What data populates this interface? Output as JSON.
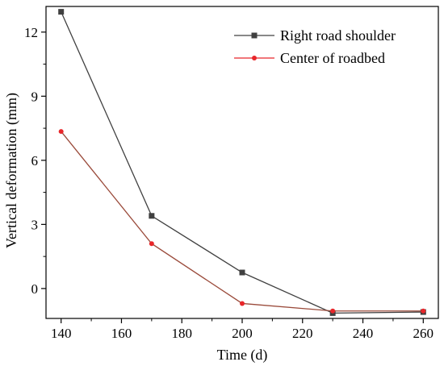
{
  "chart_data": {
    "type": "line",
    "title": "",
    "xlabel": "Time (d)",
    "ylabel": "Vertical deformation (mm)",
    "xlim": [
      135,
      265
    ],
    "ylim": [
      -1.4,
      13.2
    ],
    "x_ticks": [
      140,
      160,
      180,
      200,
      220,
      240,
      260
    ],
    "y_ticks": [
      0,
      3,
      6,
      9,
      12
    ],
    "grid": false,
    "legend_position": "top-right",
    "x": [
      140,
      170,
      200,
      230,
      260
    ],
    "series": [
      {
        "name": "Right road shoulder",
        "color": "#404040",
        "marker": "square",
        "values": [
          12.95,
          3.4,
          0.75,
          -1.15,
          -1.1
        ]
      },
      {
        "name": "Center of roadbed",
        "color": "#e8262a",
        "line_color": "#9a4a3a",
        "marker": "circle",
        "values": [
          7.35,
          2.1,
          -0.7,
          -1.05,
          -1.05
        ]
      }
    ]
  }
}
